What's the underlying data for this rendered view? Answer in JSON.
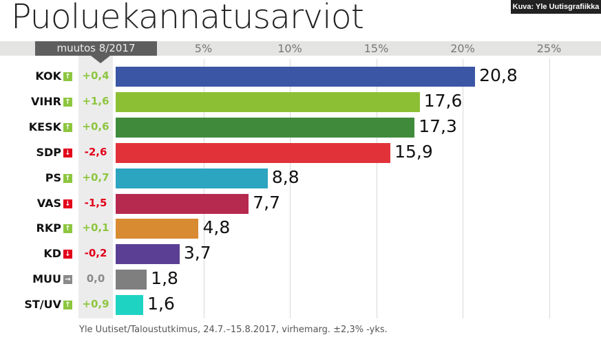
{
  "title": "Puoluekannatusarviot",
  "credit": "Kuva: Yle Uutisgrafiikka",
  "change_label": "muutos 8/2017",
  "source": "Yle Uutiset/Taloustutkimus, 24.7.–15.8.2017, virhemarg. ±2,3% -yks.",
  "colors": {
    "up": "#8dc63f",
    "down": "#e2001a",
    "same": "#8a8a8a"
  },
  "chart_data": {
    "type": "bar",
    "orientation": "horizontal",
    "title": "Puoluekannatusarviot",
    "xlim": [
      0,
      25
    ],
    "ticks": [
      {
        "v": 5,
        "label": "5%"
      },
      {
        "v": 10,
        "label": "10%"
      },
      {
        "v": 15,
        "label": "15%"
      },
      {
        "v": 20,
        "label": "20%"
      },
      {
        "v": 25,
        "label": "25%"
      }
    ],
    "grid": true,
    "rows": [
      {
        "party": "KOK",
        "value": 20.8,
        "label": "20,8",
        "change": "+0,4",
        "dir": "up",
        "color": "#3a56a5"
      },
      {
        "party": "VIHR",
        "value": 17.6,
        "label": "17,6",
        "change": "+1,6",
        "dir": "up",
        "color": "#8dbf35"
      },
      {
        "party": "KESK",
        "value": 17.3,
        "label": "17,3",
        "change": "+0,6",
        "dir": "up",
        "color": "#3f8b3b"
      },
      {
        "party": "SDP",
        "value": 15.9,
        "label": "15,9",
        "change": "-2,6",
        "dir": "down",
        "color": "#e1323a"
      },
      {
        "party": "PS",
        "value": 8.8,
        "label": "8,8",
        "change": "+0,7",
        "dir": "up",
        "color": "#2ca5c0"
      },
      {
        "party": "VAS",
        "value": 7.7,
        "label": "7,7",
        "change": "-1,5",
        "dir": "down",
        "color": "#b62a4f"
      },
      {
        "party": "RKP",
        "value": 4.8,
        "label": "4,8",
        "change": "+0,1",
        "dir": "up",
        "color": "#d88b31"
      },
      {
        "party": "KD",
        "value": 3.7,
        "label": "3,7",
        "change": "-0,2",
        "dir": "down",
        "color": "#5a3f94"
      },
      {
        "party": "MUU",
        "value": 1.8,
        "label": "1,8",
        "change": "0,0",
        "dir": "same",
        "color": "#7f7f7f"
      },
      {
        "party": "ST/UV",
        "value": 1.6,
        "label": "1,6",
        "change": "+0,9",
        "dir": "up",
        "color": "#1fd3c3"
      }
    ]
  }
}
